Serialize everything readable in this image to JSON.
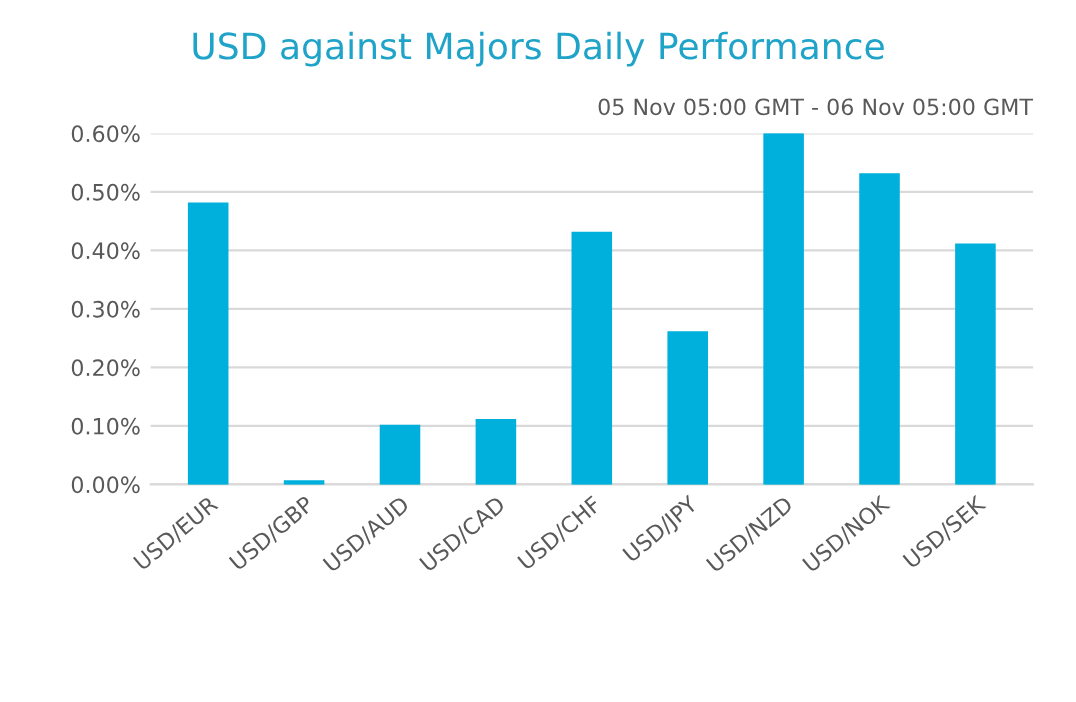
{
  "chart_data": {
    "type": "bar",
    "title": "USD against Majors Daily Performance",
    "subtitle": "05 Nov 05:00 GMT - 06 Nov 05:00 GMT",
    "categories": [
      "USD/EUR",
      "USD/GBP",
      "USD/AUD",
      "USD/CAD",
      "USD/CHF",
      "USD/JPY",
      "USD/NZD",
      "USD/NOK",
      "USD/SEK"
    ],
    "values": [
      0.48,
      0.005,
      0.1,
      0.11,
      0.43,
      0.26,
      0.6,
      0.53,
      0.41
    ],
    "color": "#00b0dc",
    "ylim": [
      0,
      0.6
    ],
    "yticks": [
      {
        "value": 0,
        "label": "0.00%"
      },
      {
        "value": 0.1,
        "label": "0.10%"
      },
      {
        "value": 0.2,
        "label": "0.20%"
      },
      {
        "value": 0.3,
        "label": "0.30%"
      },
      {
        "value": 0.4,
        "label": "0.40%"
      },
      {
        "value": 0.5,
        "label": "0.50%"
      },
      {
        "value": 0.6,
        "label": "0.60%"
      }
    ],
    "grid": "y"
  }
}
